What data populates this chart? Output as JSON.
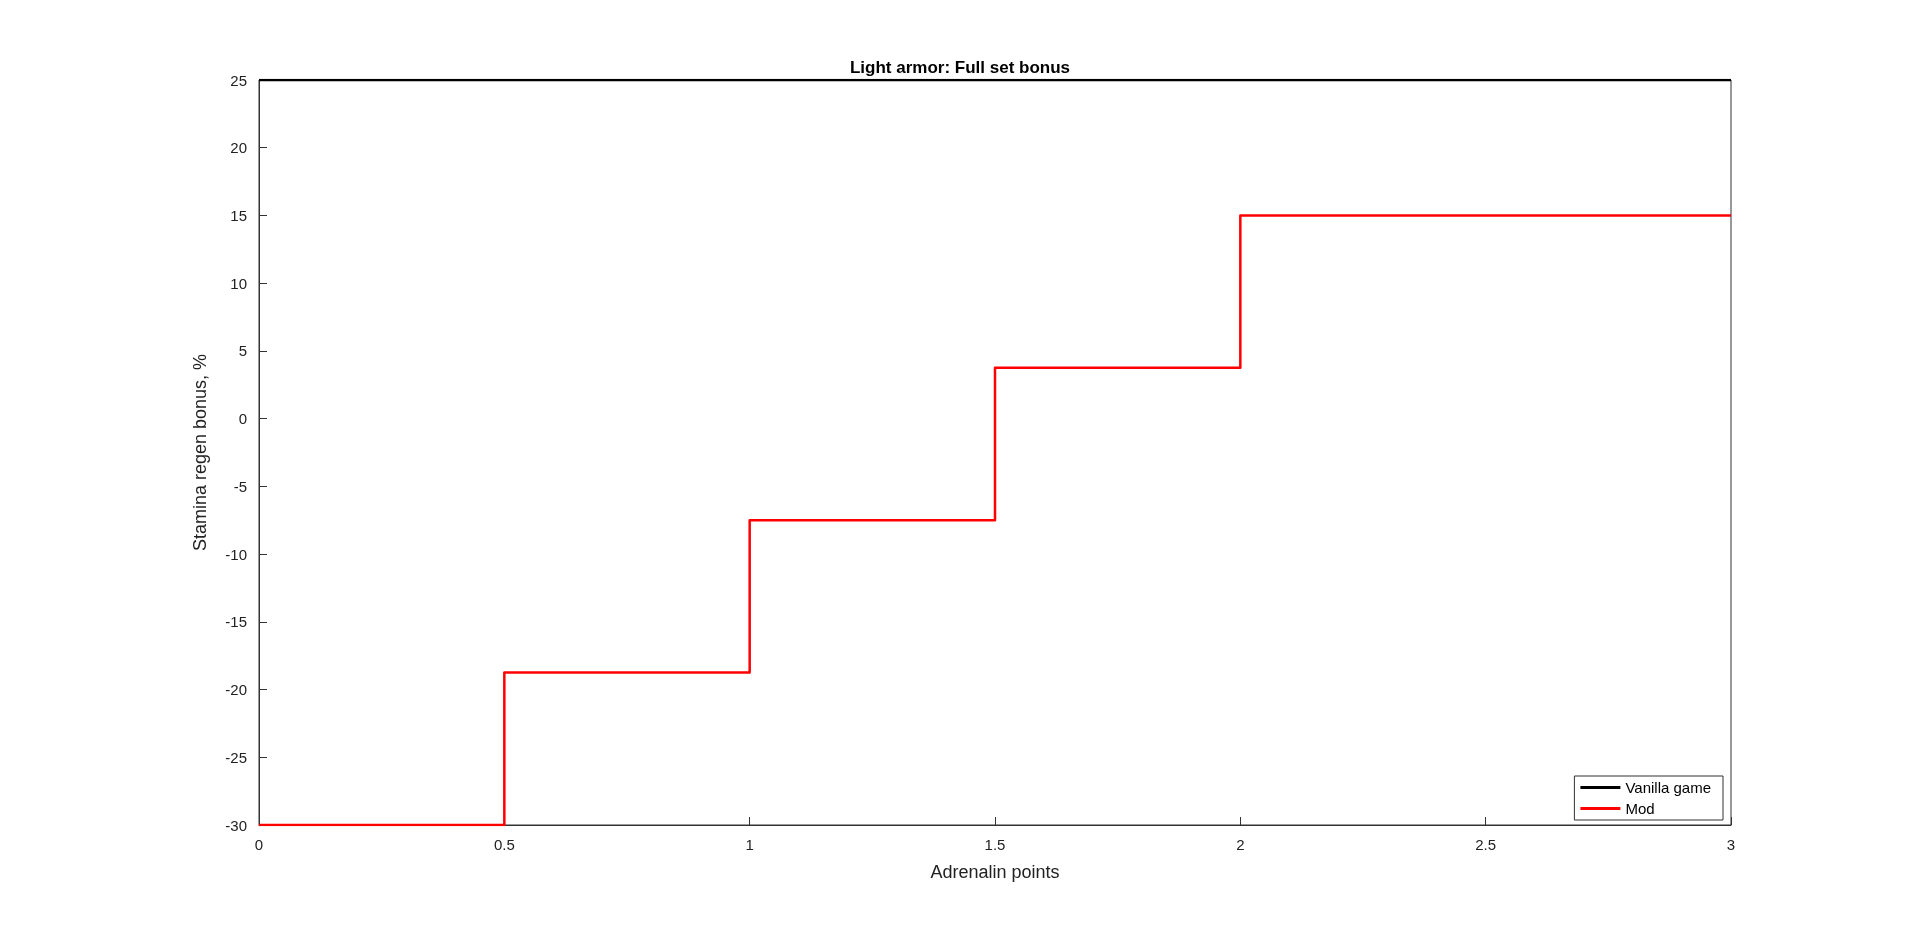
{
  "chart_data": {
    "type": "step",
    "title": "Light armor: Full set bonus",
    "xlabel": "Adrenalin points",
    "ylabel": "Stamina regen bonus, %",
    "xlim": [
      0,
      3
    ],
    "xticks": [
      0,
      0.5,
      1,
      1.5,
      2,
      2.5,
      3
    ],
    "ylim": [
      -30,
      25
    ],
    "yticks": [
      -30,
      -25,
      -20,
      -15,
      -10,
      -5,
      0,
      5,
      10,
      15,
      20,
      25
    ],
    "grid": false,
    "legend": "bottom right",
    "marker": "none",
    "line_style": "solid",
    "series": [
      {
        "name": "Vanilla game",
        "type": "line",
        "color": "#000000",
        "x": [
          0,
          3
        ],
        "values": [
          25,
          25
        ]
      },
      {
        "name": "Mod",
        "type": "step",
        "color": "#ff0000",
        "x": [
          0,
          0.5,
          1,
          1.5,
          2,
          3
        ],
        "values": [
          -30,
          -18.75,
          -7.5,
          3.75,
          15,
          15
        ]
      }
    ]
  }
}
